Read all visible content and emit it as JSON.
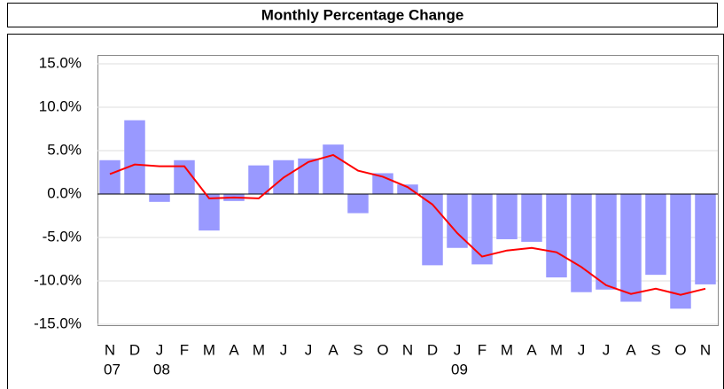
{
  "chart_data": {
    "type": "bar",
    "title": "Monthly Percentage Change",
    "categories": [
      "N",
      "D",
      "J",
      "F",
      "M",
      "A",
      "M",
      "J",
      "J",
      "A",
      "S",
      "O",
      "N",
      "D",
      "J",
      "F",
      "M",
      "A",
      "M",
      "J",
      "J",
      "A",
      "S",
      "O",
      "N"
    ],
    "year_labels": [
      "07",
      null,
      "08",
      null,
      null,
      null,
      null,
      null,
      null,
      null,
      null,
      null,
      null,
      null,
      "09",
      null,
      null,
      null,
      null,
      null,
      null,
      null,
      null,
      null,
      null
    ],
    "series": [
      {
        "type": "bar",
        "color": "#9999ff",
        "values": [
          3.9,
          8.5,
          -0.9,
          3.9,
          -4.2,
          -0.8,
          3.3,
          3.9,
          4.1,
          5.7,
          -2.2,
          2.4,
          1.1,
          -8.2,
          -6.2,
          -8.1,
          -5.2,
          -5.5,
          -9.6,
          -11.3,
          -11.0,
          -12.4,
          -9.3,
          -13.2,
          -10.4
        ]
      },
      {
        "type": "line",
        "color": "#ff0000",
        "values": [
          2.3,
          3.4,
          3.2,
          3.2,
          -0.5,
          -0.4,
          -0.5,
          1.9,
          3.7,
          4.5,
          2.7,
          2.0,
          0.8,
          -1.2,
          -4.5,
          -7.2,
          -6.5,
          -6.2,
          -6.7,
          -8.4,
          -10.5,
          -11.5,
          -10.9,
          -11.6,
          -10.9
        ]
      }
    ],
    "ylim": [
      -15,
      15
    ],
    "yticks": [
      {
        "value": -15,
        "label": "-15.0%"
      },
      {
        "value": -10,
        "label": "-10.0%"
      },
      {
        "value": -5,
        "label": "-5.0%"
      },
      {
        "value": 0,
        "label": "0.0%"
      },
      {
        "value": 5,
        "label": "5.0%"
      },
      {
        "value": 10,
        "label": "10.0%"
      },
      {
        "value": 15,
        "label": "15.0%"
      }
    ],
    "grid": true
  }
}
